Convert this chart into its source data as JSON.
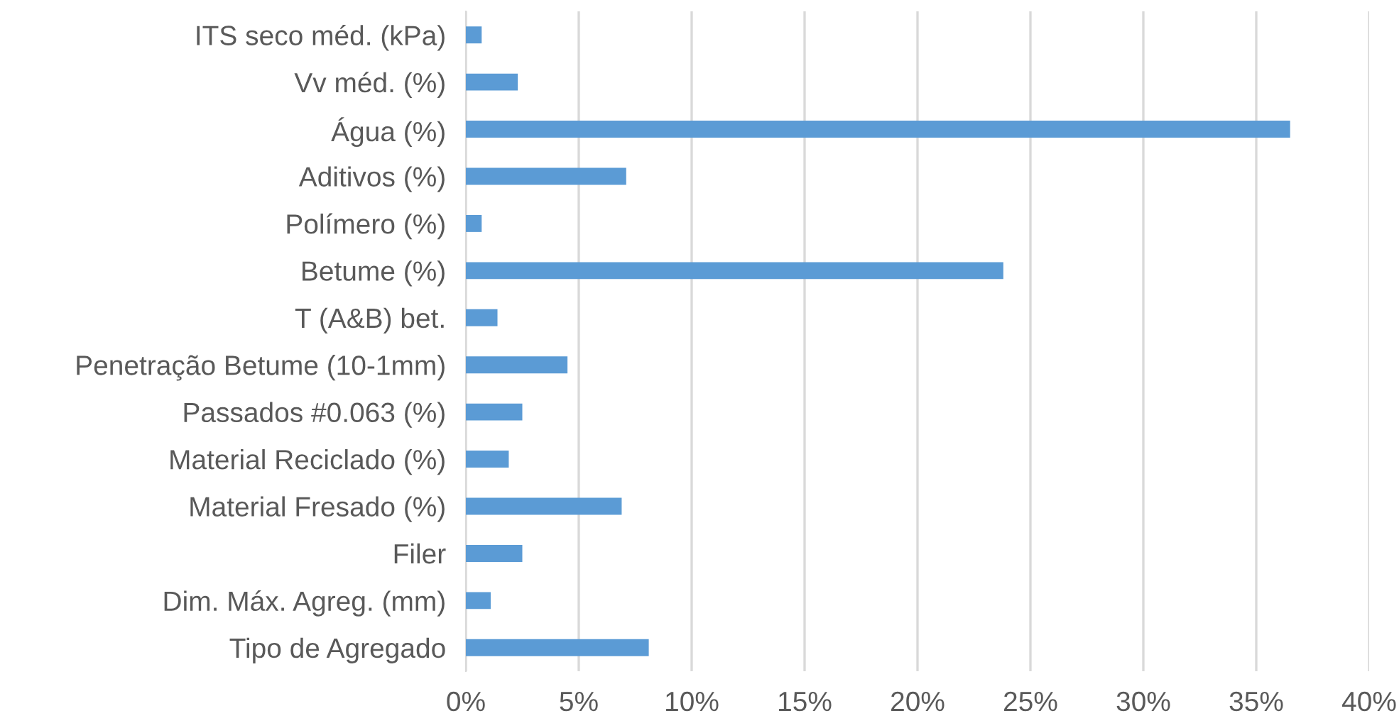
{
  "chart_data": {
    "type": "bar",
    "orientation": "horizontal",
    "categories": [
      "ITS seco méd. (kPa)",
      "Vv méd. (%)",
      "Água (%)",
      "Aditivos (%)",
      "Polímero (%)",
      "Betume (%)",
      "T (A&B) bet.",
      "Penetração Betume (10-1mm)",
      "Passados #0.063 (%)",
      "Material Reciclado (%)",
      "Material Fresado (%)",
      "Filer",
      "Dim. Máx. Agreg. (mm)",
      "Tipo de Agregado"
    ],
    "values": [
      0.7,
      2.3,
      36.5,
      7.1,
      0.7,
      23.8,
      1.4,
      4.5,
      2.5,
      1.9,
      6.9,
      2.5,
      1.1,
      8.1
    ],
    "color": "#5b9bd5",
    "xlim": [
      0,
      40
    ],
    "xticks": [
      {
        "value": 0,
        "label": "0%"
      },
      {
        "value": 5,
        "label": "5%"
      },
      {
        "value": 10,
        "label": "10%"
      },
      {
        "value": 15,
        "label": "15%"
      },
      {
        "value": 20,
        "label": "20%"
      },
      {
        "value": 25,
        "label": "25%"
      },
      {
        "value": 30,
        "label": "30%"
      },
      {
        "value": 35,
        "label": "35%"
      },
      {
        "value": 40,
        "label": "40%"
      }
    ],
    "grid": "x"
  }
}
